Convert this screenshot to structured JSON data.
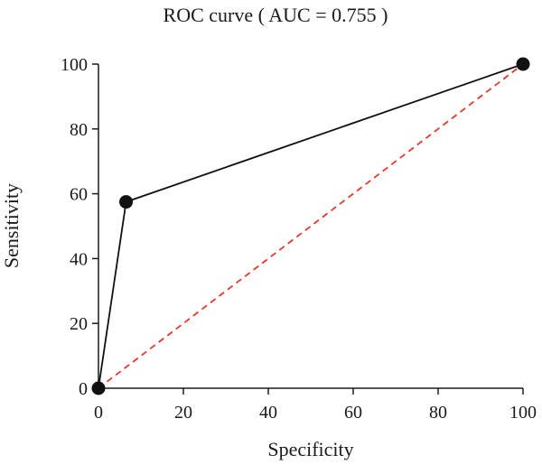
{
  "chart_data": {
    "type": "line",
    "title": "ROC curve ( AUC = 0.755 )",
    "xlabel": "Specificity",
    "ylabel": "Sensitivity",
    "xlim": [
      0,
      100
    ],
    "ylim": [
      0,
      100
    ],
    "x_ticks": [
      "0",
      "20",
      "40",
      "60",
      "80",
      "100"
    ],
    "y_ticks": [
      "0",
      "20",
      "40",
      "60",
      "80",
      "100"
    ],
    "grid": false,
    "series": [
      {
        "x": [
          0,
          6.5,
          100
        ],
        "y": [
          0,
          57.5,
          100
        ],
        "color": "#111111",
        "markers": true,
        "line_style": "solid"
      },
      {
        "x": [
          0,
          100
        ],
        "y": [
          0,
          100
        ],
        "color": "#e0392e",
        "markers": false,
        "line_style": "dashed"
      }
    ]
  }
}
